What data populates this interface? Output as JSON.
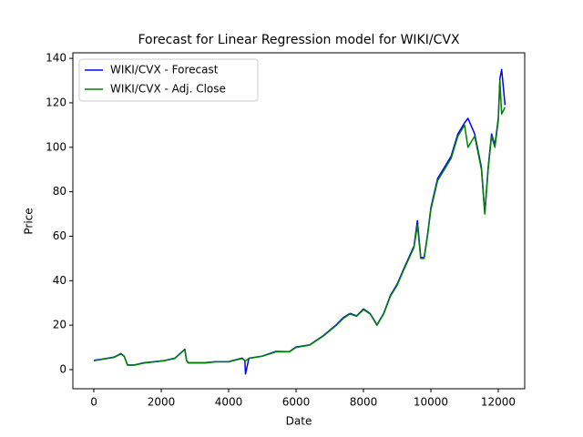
{
  "chart_data": {
    "type": "line",
    "title": "Forecast for Linear Regression model for WIKI/CVX",
    "x_label": "Date",
    "y_label": "Price",
    "x": [
      0,
      200,
      400,
      600,
      800,
      900,
      1000,
      1200,
      1500,
      1800,
      2100,
      2400,
      2700,
      2750,
      2800,
      3000,
      3300,
      3600,
      4000,
      4400,
      4480,
      4500,
      4600,
      5000,
      5400,
      5800,
      6000,
      6400,
      6800,
      7200,
      7400,
      7600,
      7800,
      8000,
      8200,
      8400,
      8600,
      8800,
      9000,
      9200,
      9500,
      9600,
      9700,
      9800,
      9900,
      10000,
      10200,
      10400,
      10600,
      10800,
      11000,
      11100,
      11300,
      11500,
      11600,
      11700,
      11800,
      11900,
      12000,
      12050,
      12100,
      12200
    ],
    "series": [
      {
        "name": "WIKI/CVX - Forecast",
        "color": "#0000ff",
        "values": [
          4.2,
          4.6,
          5.1,
          5.6,
          7.2,
          6.1,
          2.1,
          2.1,
          3.1,
          3.6,
          4.1,
          5.1,
          9.2,
          4.1,
          3.1,
          3.1,
          3.1,
          3.6,
          3.6,
          5.2,
          4.1,
          -2,
          5.1,
          6.1,
          8.2,
          8.1,
          10.2,
          11.1,
          15.2,
          20.3,
          23.4,
          25.3,
          24.2,
          27.3,
          25.2,
          20.2,
          25.3,
          33.4,
          38.5,
          45.5,
          55.6,
          67,
          50.5,
          50.4,
          60.6,
          72.8,
          86,
          90.9,
          96,
          106,
          111,
          113,
          106,
          91,
          70.5,
          91,
          106,
          101,
          113,
          131,
          135,
          119
        ]
      },
      {
        "name": "WIKI/CVX - Adj. Close",
        "color": "#008000",
        "values": [
          4,
          4.5,
          5,
          5.5,
          7,
          6,
          2,
          2,
          3,
          3.5,
          4,
          5,
          9,
          4,
          3,
          3,
          3,
          3.5,
          3.5,
          5,
          4,
          4,
          5,
          6,
          8,
          8,
          10,
          11,
          15,
          20,
          23,
          25,
          24,
          27,
          25,
          20,
          25,
          33,
          38,
          45,
          55,
          65,
          50,
          50,
          60,
          72,
          85,
          90,
          95,
          105,
          110,
          100,
          105,
          90,
          70,
          90,
          105,
          100,
          112,
          130,
          115,
          118
        ]
      }
    ],
    "xlim": [
      -622,
      12784
    ],
    "ylim": [
      -8.6,
      142.5
    ],
    "xticks": [
      0,
      2000,
      4000,
      6000,
      8000,
      10000,
      12000
    ],
    "yticks": [
      0,
      20,
      40,
      60,
      80,
      100,
      120,
      140
    ],
    "legend": "upper left"
  }
}
